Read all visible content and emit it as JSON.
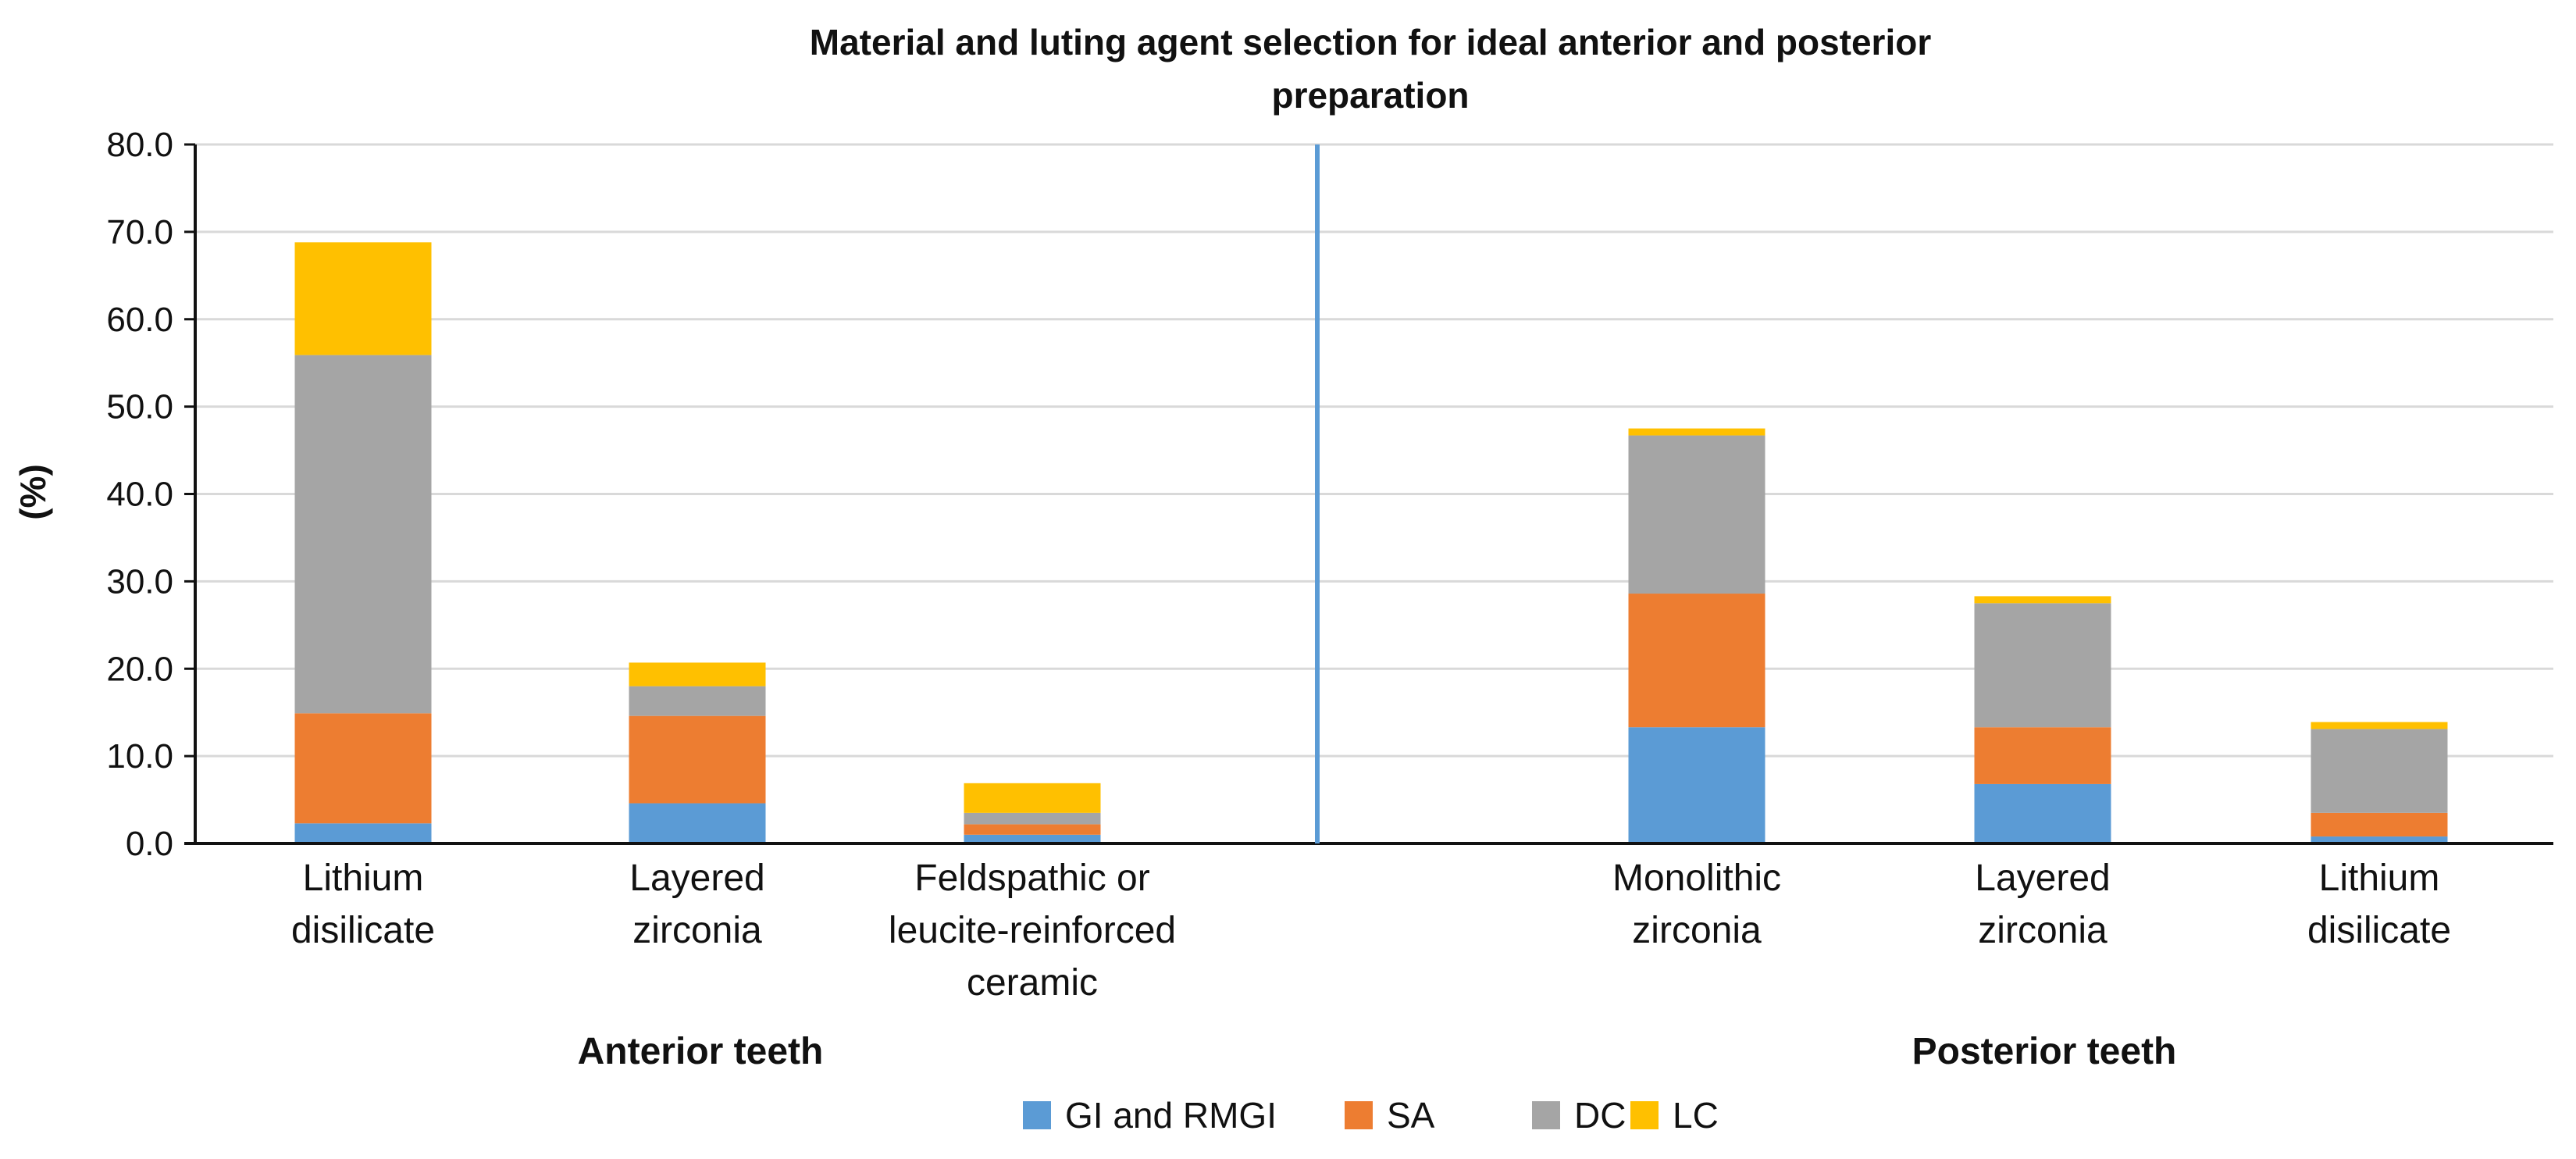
{
  "chart_data": {
    "type": "bar",
    "stacked": true,
    "title_lines": [
      "Material and luting agent selection for ideal anterior and posterior",
      "preparation"
    ],
    "ylabel": "(%)",
    "xlabel": "",
    "ylim": [
      0,
      80
    ],
    "yticks": [
      "0.0",
      "10.0",
      "20.0",
      "30.0",
      "40.0",
      "50.0",
      "60.0",
      "70.0",
      "80.0"
    ],
    "grid": true,
    "legend_position": "bottom",
    "groups": [
      {
        "name": "Anterior teeth",
        "categories": [
          {
            "label_lines": [
              "Lithium",
              "disilicate"
            ]
          },
          {
            "label_lines": [
              "Layered",
              "zirconia"
            ]
          },
          {
            "label_lines": [
              "Feldspathic or",
              "leucite-reinforced",
              "ceramic"
            ]
          }
        ]
      },
      {
        "name": "Posterior teeth",
        "categories": [
          {
            "label_lines": [
              "Monolithic",
              "zirconia"
            ]
          },
          {
            "label_lines": [
              "Layered",
              "zirconia"
            ]
          },
          {
            "label_lines": [
              "Lithium",
              "disilicate"
            ]
          }
        ]
      }
    ],
    "series": [
      {
        "name": "GI and RMGI",
        "color": "#5B9BD5",
        "values": [
          2.3,
          4.6,
          1.0,
          13.3,
          6.8,
          0.8
        ]
      },
      {
        "name": "SA",
        "color": "#ED7D31",
        "values": [
          12.6,
          10.0,
          1.2,
          15.3,
          6.5,
          2.7
        ]
      },
      {
        "name": "DC",
        "color": "#A5A5A5",
        "values": [
          41.0,
          3.4,
          1.3,
          18.1,
          14.2,
          9.6
        ]
      },
      {
        "name": "LC",
        "color": "#FFC000",
        "values": [
          12.9,
          2.7,
          3.4,
          0.8,
          0.8,
          0.8
        ]
      }
    ],
    "divider_color": "#5B9BD5"
  }
}
